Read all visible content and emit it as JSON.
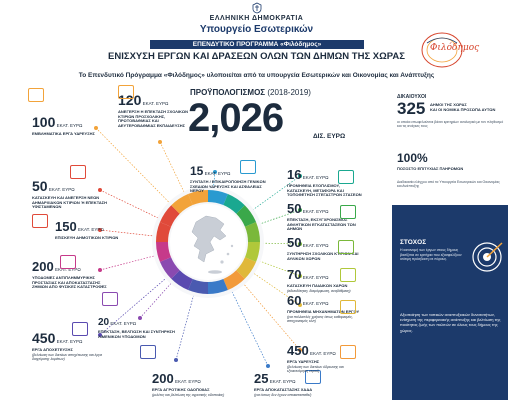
{
  "header": {
    "gov_line1": "ΕΛΛΗΝΙΚΗ ΔΗΜΟΚΡΑΤΙΑ",
    "gov_line2": "Υπουργείο Εσωτερικών",
    "program": "ΕΠΕΝΔΥΤΙΚΟ ΠΡΟΓΡΑΜΜΑ «Φιλόδημος»",
    "title": "ΕΝΙΣΧΥΣΗ ΕΡΓΩΝ ΚΑΙ ΔΡΑΣΕΩΝ ΟΛΩΝ ΤΩΝ ΔΗΜΩΝ ΤΗΣ ΧΩΡΑΣ",
    "subtitle": "Το Επενδυτικό Πρόγραμμα «Φιλόδημος» υλοποιείται από τα υπουργεία Εσωτερικών και Οικονομίας και Ανάπτυξης",
    "logo_text": "Φιλόδημος"
  },
  "budget": {
    "label": "ΠΡΟΫΠΟΛΟΓΙΣΜΟΣ",
    "years": "(2018-2019)",
    "value": "2,026",
    "unit": "ΔΙΣ. ΕΥΡΩ"
  },
  "items_left": [
    {
      "num": "100",
      "unit": "ΕΚΑΤ. ΕΥΡΩ",
      "label": "ΕΜΒΛΗΜΑΤΙΚΑ ΕΡΓΑ ΥΔΡΕΥΣΗΣ",
      "color": "#f2a33a"
    },
    {
      "num": "120",
      "unit": "ΕΚΑΤ. ΕΥΡΩ",
      "label": "ΑΝΕΓΕΡΣΗ Η ΕΠΕΚΤΑΣΗ ΣΧΟΛΙΚΩΝ ΚΤΙΡΙΩΝ ΠΡΟΣΧΟΛΙΚΗΣ, ΠΡΩΤΟΒΑΘΜΙΑΣ ΚΑΙ ΔΕΥΤΕΡΟΒΑΘΜΙΑΣ ΕΚΠΑΙΔΕΥΣΗΣ",
      "color": "#f2a33a"
    },
    {
      "num": "50",
      "unit": "ΕΚΑΤ. ΕΥΡΩ",
      "label": "ΚΑΤΑΣΚΕΥΗ ΚΑΙ ΑΝΕΓΕΡΣΗ ΝΕΩΝ ΔΗΜΑΡΧΙΑΚΩΝ ΚΤΙΡΙΩΝ Ή ΕΠΕΚΤΑΣΗ ΥΦΙΣΤΑΜΕΝΩΝ",
      "color": "#e04a3a"
    },
    {
      "num": "150",
      "unit": "ΕΚΑΤ. ΕΥΡΩ",
      "label": "ΕΠΙΣΚΕΥΗ ΔΗΜΟΤΙΚΩΝ ΚΤΙΡΙΩΝ",
      "color": "#e04a3a"
    },
    {
      "num": "200",
      "unit": "ΕΚΑΤ. ΕΥΡΩ",
      "label": "ΥΠΟΔΟΜΕΣ ΑΝΤΙΠΛΗΜΜΥΡΙΚΗΣ ΠΡΟΣΤΑΣΙΑΣ ΚΑΙ ΑΠΟΚΑΤΑΣΤΑΣΗΣ ΖΗΜΙΩΝ ΑΠΟ ΦΥΣΙΚΕΣ ΚΑΤΑΣΤΡΟΦΕΣ",
      "color": "#c63a8a"
    },
    {
      "num": "20",
      "unit": "ΕΚΑΤ. ΕΥΡΩ",
      "label": "ΕΠΕΚΤΑΣΗ, ΒΕΛΤΙΩΣΗ ΚΑΙ ΣΥΝΤΗΡΗΣΗ ΛΙΜΕΝΙΚΩΝ ΥΠΟΔΟΜΩΝ",
      "color": "#8a4ab0"
    },
    {
      "num": "450",
      "unit": "ΕΚΑΤ. ΕΥΡΩ",
      "label": "ΕΡΓΑ ΑΠΟΧΕΤΕΥΣΗΣ",
      "note": "(βελτίωση των δικτύων αποχέτευσης και έργα διαχείρισης λυμάτων)",
      "color": "#5a4ab0"
    },
    {
      "num": "200",
      "unit": "ΕΚΑΤ. ΕΥΡΩ",
      "label": "ΕΡΓΑ ΑΓΡΟΤΙΚΗΣ ΟΔΟΠΟΙΙΑΣ",
      "note": "(μελέτες και βελτίωση της αγροτικής οδοποιίας)",
      "color": "#4a5ab0"
    },
    {
      "num": "25",
      "unit": "ΕΚΑΤ. ΕΥΡΩ",
      "label": "ΕΡΓΑ ΑΠΟΚΑΤΑΣΤΑΣΗΣ ΧΑΔΑ",
      "note": "(για όσους δεν έχουν αποκατασταθεί)",
      "color": "#3a7ac8"
    }
  ],
  "items_right": [
    {
      "num": "15",
      "unit": "ΕΚΑΤ. ΕΥΡΩ",
      "label": "ΣΥΝΤΑΞΗ / ΕΠΙΚΑΙΡΟΠΟΙΗΣΗ ΓΕΝΙΚΩΝ ΣΧΕΔΙΩΝ ΥΔΡΕΥΣΗΣ ΚΑΙ ΑΣΦΑΛΕΙΑΣ ΝΕΡΟΥ",
      "color": "#2a9ad0"
    },
    {
      "num": "16",
      "unit": "ΕΚΑΤ. ΕΥΡΩ",
      "label": "ΠΡΟΜΗΘΕΙΑ ΕΞΟΠΛΙΣΜΟΥ, ΚΑΤΑΣΚΕΥΗ, ΜΕΤΑΦΟΡΑ ΚΑΙ ΤΟΠΟΘΕΤΗΣΗ ΣΤΕΓΑΣΤΡΩΝ ΣΤΑΣΕΩΝ",
      "color": "#1aa890"
    },
    {
      "num": "50",
      "unit": "ΕΚΑΤ. ΕΥΡΩ",
      "label": "ΕΠΕΚΤΑΣΗ, ΕΚΣΥΓΧΡΟΝΙΣΜΟΣ ΑΘΛΗΤΙΚΩΝ ΕΓΚΑΤΑΣΤΑΣΕΩΝ ΤΩΝ ΔΗΜΩΝ",
      "color": "#3aa84a"
    },
    {
      "num": "50",
      "unit": "ΕΚΑΤ. ΕΥΡΩ",
      "label": "ΣΥΝΤΗΡΗΣΗ ΣΧΟΛΙΚΩΝ ΚΤΙΡΙΩΝ ΚΑΙ ΑΥΛΙΚΩΝ ΧΩΡΩΝ",
      "color": "#7ab83a"
    },
    {
      "num": "70",
      "unit": "ΕΚΑΤ. ΕΥΡΩ",
      "label": "ΚΑΤΑΣΚΕΥΗ ΠΑΙΔΙΚΩΝ ΧΑΡΩΝ",
      "note": "(αδειοδότηση, διαμόρφωση, αναβάθμιση)",
      "color": "#b0c83a"
    },
    {
      "num": "60",
      "unit": "ΕΚΑΤ. ΕΥΡΩ",
      "label": "ΠΡΟΜΗΘΕΙΑ ΜΗΧΑΝΗΜΑΤΩΝ ΕΡΓΟΥ",
      "note": "(για πολλαπλές χρήσεις όπως καθαρισμός, αποχιονισμός κλπ)",
      "color": "#e0b83a"
    },
    {
      "num": "450",
      "unit": "ΕΚΑΤ. ΕΥΡΩ",
      "label": "ΕΡΓΑ ΥΔΡΕΥΣΗΣ",
      "note": "(βελτίωση των δικτύων ύδρευσης και εξοικονόμηση νερού)",
      "color": "#f29a3a"
    }
  ],
  "right_stats": {
    "eligible_small": "ΔΙΚΑΙΟΥΧΟΙ",
    "eligible_num": "325",
    "eligible_label": "ΔΗΜΟΙ ΤΗΣ ΧΩΡΑΣ",
    "eligible_label2": "ΚΑΙ ΟΙ ΝΟΜΙΚΑ ΠΡΟΣΩΠΑ ΑΥΤΩΝ",
    "eligible_desc": "οι οποίοι επωφελούνται βάσει κριτηρίων αναλογικά με τον πληθυσμό και τις ανάγκες τους",
    "success_num": "100%",
    "success_label": "ΠΟΣΟΣΤΟ ΕΠΙΤΥΧΙΑΣ ΠΛΗΡΩΜΩΝ",
    "success_desc": "Διαδικασία ελέγχου από τα Υπουργεία Εσωτερικών και Οικονομίας και Ανάπτυξης"
  },
  "goal": {
    "title": "ΣΤΟΧΟΣ",
    "text": "Η κατανομή των έργων στους δήμους βασίζεται σε κριτήρια που εξασφαλίζουν ισότιμη πρόσβαση σε πόρους.",
    "text2": "Αξιοποίηση των τοπικών αναπτυξιακών δυνατοτήτων, ενίσχυση της περιφερειακής ανάπτυξης και βελτίωση της ποιότητας ζωής των πολιτών σε όλους τους δήμους της χώρας."
  }
}
